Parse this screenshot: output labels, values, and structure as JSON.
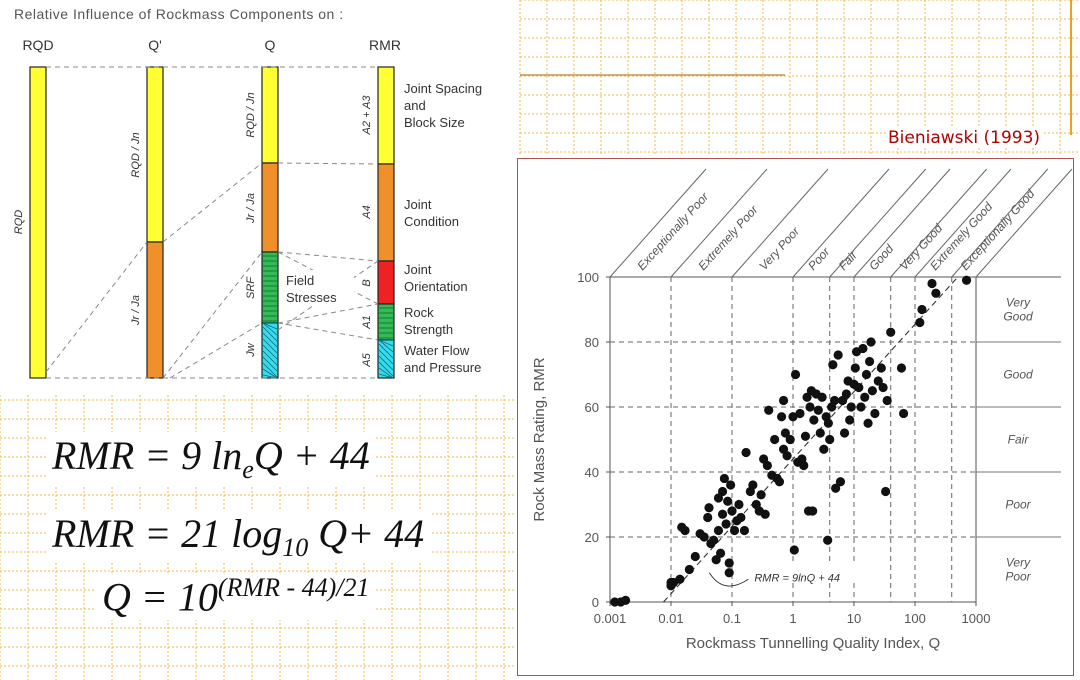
{
  "left_panel": {
    "title": "Relative Influence of Rockmass Components on :",
    "columns": [
      "RQD",
      "Q'",
      "Q",
      "RMR"
    ],
    "rqd_bar_label": "RQD",
    "qprime_labels": [
      "RQD / Jn",
      "Jr / Ja"
    ],
    "q_labels": [
      "RQD / Jn",
      "Jr / Ja",
      "SRF",
      "Jw"
    ],
    "rmr_labels": [
      "A2 + A3",
      "A4",
      "B",
      "A1",
      "A5"
    ],
    "components": [
      {
        "lines": [
          "Joint Spacing",
          "and",
          "Block Size"
        ]
      },
      {
        "lines": [
          "Joint",
          "Condition"
        ]
      },
      {
        "lines": [
          "Joint",
          "Orientation"
        ]
      },
      {
        "lines": [
          "Rock",
          "Strength"
        ]
      },
      {
        "lines": [
          "Water Flow",
          "and Pressure"
        ]
      }
    ],
    "field_stresses": [
      "Field",
      "Stresses"
    ],
    "colors": {
      "yellow": "#ffff33",
      "orange": "#f0902a",
      "red": "#ee2222",
      "green": "#33bb55",
      "cyan": "#33ddee"
    }
  },
  "equations": {
    "eq1": {
      "text": "RMR = 9 ln",
      "sub": "e",
      "tail": "Q + 44"
    },
    "eq2": {
      "text": "RMR = 21 log",
      "sub": "10",
      "tail": " Q+ 44"
    },
    "eq3": {
      "text": "Q = 10",
      "sup": "(RMR - 44)/21"
    }
  },
  "citation": "Bieniawski (1993)",
  "chart_data": {
    "type": "scatter",
    "title": "",
    "xlabel": "Rockmass Tunnelling Quality Index, Q",
    "ylabel": "Rock Mass Rating, RMR",
    "xscale": "log",
    "xlim": [
      0.001,
      1000
    ],
    "ylim": [
      0,
      100
    ],
    "x_ticks": [
      "0.001",
      "0.01",
      "0.1",
      "1",
      "10",
      "100",
      "1000"
    ],
    "y_ticks": [
      "0",
      "20",
      "40",
      "60",
      "80",
      "100"
    ],
    "q_classes": [
      "Exceptionally Poor",
      "Extremely Poor",
      "Very Poor",
      "Poor",
      "Fair",
      "Good",
      "Very Good",
      "Extremely Good",
      "Exceptionally Good"
    ],
    "q_class_bounds": [
      0.001,
      0.01,
      0.1,
      1,
      4,
      10,
      40,
      100,
      400,
      1000
    ],
    "rmr_classes": [
      {
        "label": [
          "Very",
          "Good"
        ],
        "range": [
          80,
          100
        ]
      },
      {
        "label": [
          "Good"
        ],
        "range": [
          60,
          80
        ]
      },
      {
        "label": [
          "Fair"
        ],
        "range": [
          40,
          60
        ]
      },
      {
        "label": [
          "Poor"
        ],
        "range": [
          20,
          40
        ]
      },
      {
        "label": [
          "Very",
          "Poor"
        ],
        "range": [
          0,
          20
        ]
      }
    ],
    "fit_line": {
      "label": "RMR = 9lnQ + 44",
      "a": 9,
      "b": 44
    },
    "points": [
      [
        0.0012,
        0
      ],
      [
        0.0015,
        0
      ],
      [
        0.0018,
        0.5
      ],
      [
        0.01,
        5
      ],
      [
        0.01,
        6
      ],
      [
        0.011,
        6
      ],
      [
        0.014,
        7
      ],
      [
        0.015,
        23
      ],
      [
        0.017,
        22
      ],
      [
        0.02,
        10
      ],
      [
        0.025,
        14
      ],
      [
        0.03,
        21
      ],
      [
        0.035,
        20
      ],
      [
        0.04,
        26
      ],
      [
        0.042,
        29
      ],
      [
        0.045,
        18
      ],
      [
        0.05,
        19
      ],
      [
        0.055,
        13
      ],
      [
        0.06,
        32
      ],
      [
        0.06,
        22
      ],
      [
        0.065,
        15
      ],
      [
        0.07,
        34
      ],
      [
        0.07,
        27
      ],
      [
        0.075,
        38
      ],
      [
        0.08,
        24
      ],
      [
        0.085,
        31
      ],
      [
        0.09,
        9
      ],
      [
        0.09,
        12
      ],
      [
        0.095,
        36
      ],
      [
        0.1,
        28
      ],
      [
        0.11,
        22
      ],
      [
        0.12,
        25
      ],
      [
        0.13,
        30
      ],
      [
        0.14,
        26
      ],
      [
        0.16,
        22
      ],
      [
        0.17,
        46
      ],
      [
        0.2,
        34
      ],
      [
        0.22,
        36
      ],
      [
        0.25,
        30
      ],
      [
        0.28,
        28
      ],
      [
        0.3,
        33
      ],
      [
        0.33,
        44
      ],
      [
        0.35,
        27
      ],
      [
        0.38,
        42
      ],
      [
        0.4,
        59
      ],
      [
        0.45,
        39
      ],
      [
        0.5,
        50
      ],
      [
        0.55,
        38
      ],
      [
        0.6,
        37
      ],
      [
        0.65,
        57
      ],
      [
        0.7,
        62
      ],
      [
        0.7,
        47
      ],
      [
        0.75,
        52
      ],
      [
        0.8,
        45
      ],
      [
        0.9,
        50
      ],
      [
        1.0,
        57
      ],
      [
        1.05,
        16
      ],
      [
        1.1,
        70
      ],
      [
        1.2,
        43
      ],
      [
        1.3,
        58
      ],
      [
        1.4,
        44
      ],
      [
        1.5,
        42
      ],
      [
        1.6,
        51
      ],
      [
        1.7,
        63
      ],
      [
        1.8,
        28
      ],
      [
        1.9,
        60
      ],
      [
        2.0,
        65
      ],
      [
        2.1,
        28
      ],
      [
        2.2,
        56
      ],
      [
        2.4,
        64
      ],
      [
        2.6,
        59
      ],
      [
        2.8,
        52
      ],
      [
        3.0,
        63
      ],
      [
        3.2,
        47
      ],
      [
        3.5,
        57
      ],
      [
        3.7,
        19
      ],
      [
        3.8,
        55
      ],
      [
        4.0,
        50
      ],
      [
        4.3,
        60
      ],
      [
        4.5,
        73
      ],
      [
        4.8,
        62
      ],
      [
        5.0,
        35
      ],
      [
        5.5,
        76
      ],
      [
        6.0,
        37
      ],
      [
        6.5,
        62
      ],
      [
        7.0,
        52
      ],
      [
        7.5,
        64
      ],
      [
        8.0,
        68
      ],
      [
        8.5,
        56
      ],
      [
        9.0,
        60
      ],
      [
        10,
        67
      ],
      [
        10.5,
        72
      ],
      [
        11,
        77
      ],
      [
        12,
        66
      ],
      [
        13,
        60
      ],
      [
        14,
        78
      ],
      [
        15,
        63
      ],
      [
        16,
        70
      ],
      [
        17,
        55
      ],
      [
        18,
        74
      ],
      [
        19,
        80
      ],
      [
        20,
        65
      ],
      [
        22,
        58
      ],
      [
        25,
        68
      ],
      [
        28,
        72
      ],
      [
        30,
        66
      ],
      [
        33,
        34
      ],
      [
        35,
        62
      ],
      [
        40,
        83
      ],
      [
        60,
        72
      ],
      [
        65,
        58
      ],
      [
        120,
        86
      ],
      [
        130,
        90
      ],
      [
        190,
        98
      ],
      [
        220,
        95
      ],
      [
        700,
        99
      ]
    ]
  }
}
